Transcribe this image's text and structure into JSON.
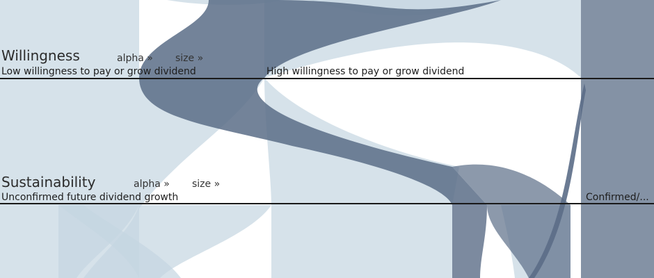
{
  "colors": {
    "light": "#c5d5e1",
    "dark": "#5b6d87",
    "axis": "#1a1a1a"
  },
  "dimensions": [
    {
      "title": "Willingness",
      "alpha_link": "alpha »",
      "size_link": "size »",
      "categories": [
        "Low willingness to pay or grow dividend",
        "High willingness to pay or grow dividend"
      ]
    },
    {
      "title": "Sustainability",
      "alpha_link": "alpha »",
      "size_link": "size »",
      "categories": [
        "Unconfirmed future dividend growth",
        "Confirmed/..."
      ]
    }
  ]
}
